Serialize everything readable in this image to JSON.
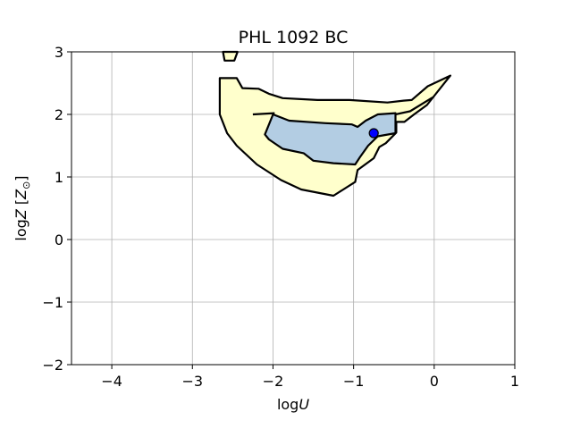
{
  "chart_data": {
    "type": "contour",
    "title": "PHL 1092 BC",
    "xlabel": "logU",
    "ylabel": "logZ [Z☉]",
    "xlim": [
      -4.5,
      1
    ],
    "ylim": [
      -2,
      3
    ],
    "xticks": [
      -4,
      -3,
      -2,
      -1,
      0,
      1
    ],
    "yticks": [
      -2,
      -1,
      0,
      1,
      2,
      3
    ],
    "xtick_labels": [
      "−4",
      "−3",
      "−2",
      "−1",
      "0",
      "1"
    ],
    "ytick_labels": [
      "−2",
      "−1",
      "0",
      "1",
      "2",
      "3"
    ],
    "grid": true,
    "colors": {
      "outer_region": "#ffffcc",
      "inner_region": "#b3cde3",
      "contour_line": "#000000",
      "marker": "#0000ff",
      "grid": "#b0b0b0"
    },
    "regions": [
      {
        "level": "outer",
        "points": [
          [
            -2.66,
            2.58
          ],
          [
            -2.45,
            2.58
          ],
          [
            -2.38,
            2.42
          ],
          [
            -2.18,
            2.41
          ],
          [
            -2.05,
            2.33
          ],
          [
            -1.88,
            2.26
          ],
          [
            -1.45,
            2.23
          ],
          [
            -1.05,
            2.23
          ],
          [
            -0.58,
            2.19
          ],
          [
            -0.38,
            2.22
          ],
          [
            -0.28,
            2.23
          ],
          [
            -0.08,
            2.45
          ],
          [
            0.2,
            2.62
          ],
          [
            -0.09,
            2.15
          ],
          [
            -0.25,
            2.0
          ],
          [
            -0.37,
            1.88
          ],
          [
            -0.47,
            1.88
          ],
          [
            -0.47,
            1.71
          ],
          [
            -0.6,
            1.54
          ],
          [
            -0.68,
            1.48
          ],
          [
            -0.75,
            1.3
          ],
          [
            -0.95,
            1.11
          ],
          [
            -0.98,
            0.92
          ],
          [
            -1.25,
            0.7
          ],
          [
            -1.65,
            0.8
          ],
          [
            -1.9,
            0.95
          ],
          [
            -2.2,
            1.2
          ],
          [
            -2.45,
            1.5
          ],
          [
            -2.57,
            1.7
          ],
          [
            -2.66,
            2.0
          ]
        ]
      },
      {
        "level": "outer",
        "points": [
          [
            -2.62,
            3.0
          ],
          [
            -2.6,
            2.86
          ],
          [
            -2.48,
            2.86
          ],
          [
            -2.44,
            3.0
          ]
        ]
      },
      {
        "level": "inner",
        "points": [
          [
            -2.0,
            2.0
          ],
          [
            -1.8,
            1.9
          ],
          [
            -1.35,
            1.86
          ],
          [
            -1.02,
            1.84
          ],
          [
            -0.95,
            1.8
          ],
          [
            -0.85,
            1.9
          ],
          [
            -0.7,
            2.0
          ],
          [
            -0.48,
            2.02
          ],
          [
            -0.48,
            1.7
          ],
          [
            -0.7,
            1.65
          ],
          [
            -0.82,
            1.5
          ],
          [
            -0.92,
            1.32
          ],
          [
            -0.98,
            1.2
          ],
          [
            -1.25,
            1.22
          ],
          [
            -1.5,
            1.26
          ],
          [
            -1.62,
            1.38
          ],
          [
            -1.88,
            1.45
          ],
          [
            -2.05,
            1.6
          ],
          [
            -2.1,
            1.68
          ]
        ]
      }
    ],
    "lines": [
      {
        "points": [
          [
            -2.25,
            2.0
          ],
          [
            -1.98,
            2.02
          ]
        ]
      },
      {
        "points": [
          [
            -0.48,
            2.0
          ],
          [
            -0.3,
            2.05
          ],
          [
            -0.02,
            2.27
          ]
        ]
      }
    ],
    "point": {
      "x": -0.75,
      "y": 1.7
    }
  }
}
